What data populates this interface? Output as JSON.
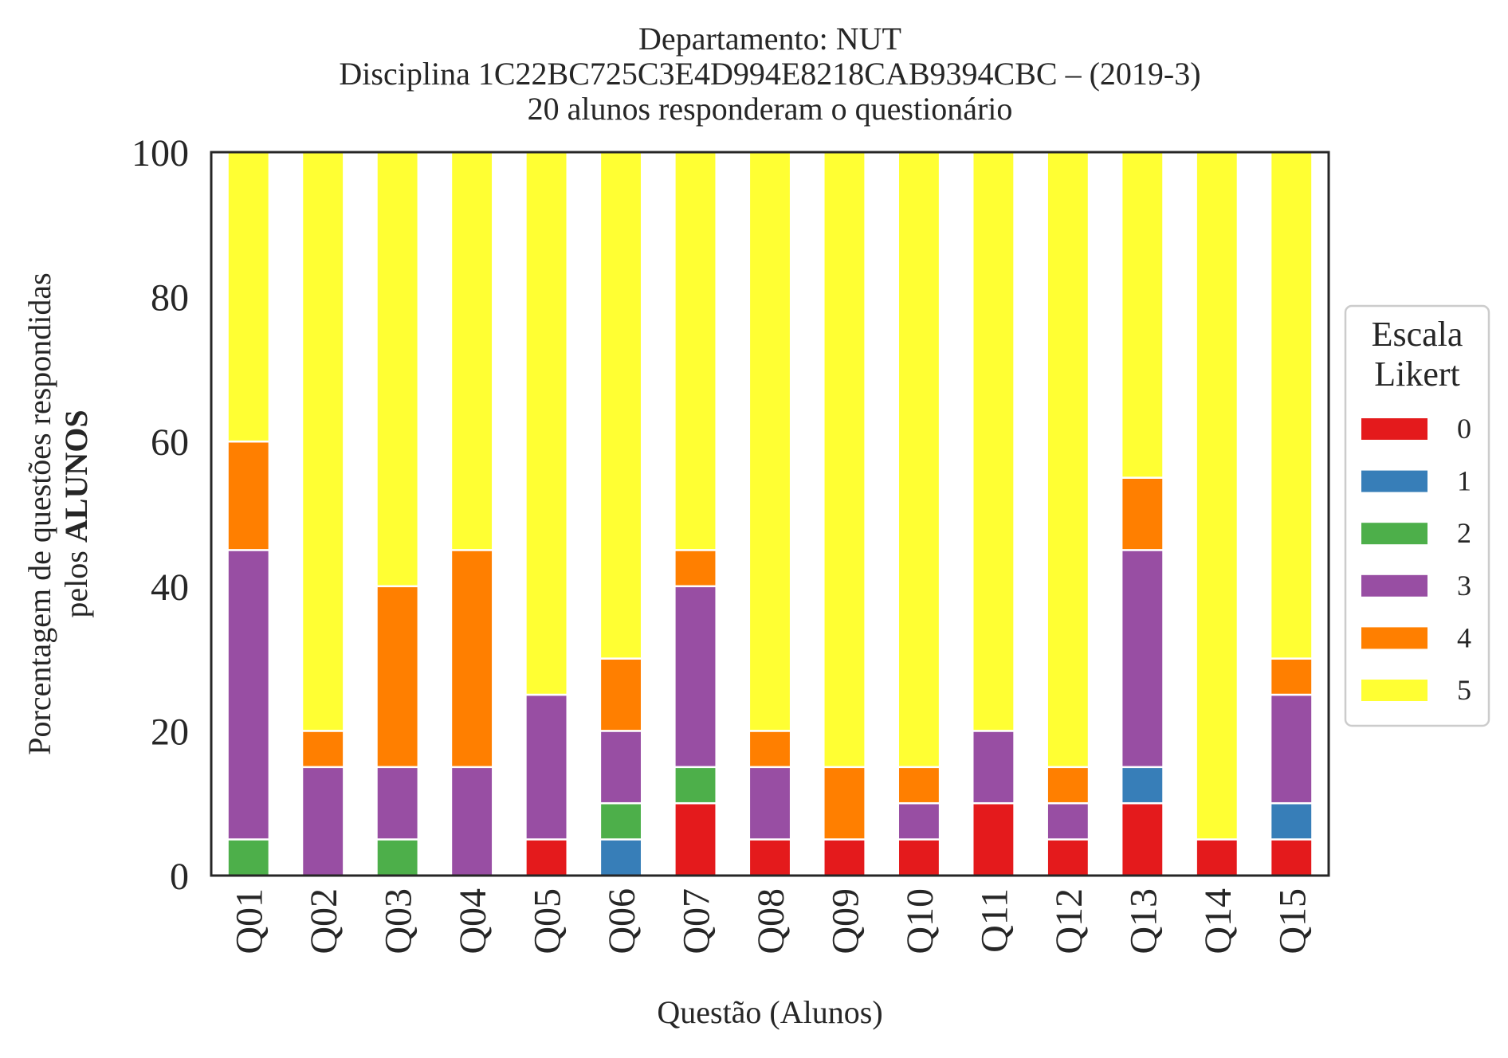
{
  "chart_data": {
    "type": "bar",
    "stacked": true,
    "title_lines": [
      "Departamento: NUT",
      "Disciplina 1C22BC725C3E4D994E8218CAB9394CBC – (2019-3)",
      "20 alunos responderam o questionário"
    ],
    "xlabel": "Questão (Alunos)",
    "ylabel_line1": "Porcentagem de questões respondidas",
    "ylabel_line2_prefix": "pelos ",
    "ylabel_line2_bold": "ALUNOS",
    "ylim": [
      0,
      100
    ],
    "yticks": [
      "0",
      "20",
      "40",
      "60",
      "80",
      "100"
    ],
    "grid": false,
    "legend_position": "right",
    "legend_title_lines": [
      "Escala",
      "Likert"
    ],
    "categories": [
      "Q01",
      "Q02",
      "Q03",
      "Q04",
      "Q05",
      "Q06",
      "Q07",
      "Q08",
      "Q09",
      "Q10",
      "Q11",
      "Q12",
      "Q13",
      "Q14",
      "Q15"
    ],
    "series": [
      {
        "name": "0",
        "color": "#e41a1c",
        "values": [
          0,
          0,
          0,
          0,
          5,
          0,
          10,
          5,
          5,
          5,
          10,
          5,
          10,
          5,
          5
        ]
      },
      {
        "name": "1",
        "color": "#377eb8",
        "values": [
          0,
          0,
          0,
          0,
          0,
          5,
          0,
          0,
          0,
          0,
          0,
          0,
          5,
          0,
          5
        ]
      },
      {
        "name": "2",
        "color": "#4daf4a",
        "values": [
          5,
          0,
          5,
          0,
          0,
          5,
          5,
          0,
          0,
          0,
          0,
          0,
          0,
          0,
          0
        ]
      },
      {
        "name": "3",
        "color": "#984ea3",
        "values": [
          40,
          15,
          10,
          15,
          20,
          10,
          25,
          10,
          0,
          5,
          10,
          5,
          30,
          0,
          15
        ]
      },
      {
        "name": "4",
        "color": "#ff7f00",
        "values": [
          15,
          5,
          25,
          30,
          0,
          10,
          5,
          5,
          10,
          5,
          0,
          5,
          10,
          0,
          5
        ]
      },
      {
        "name": "5",
        "color": "#ffff33",
        "values": [
          40,
          80,
          60,
          55,
          75,
          70,
          55,
          80,
          85,
          85,
          80,
          85,
          45,
          95,
          70
        ]
      }
    ]
  }
}
